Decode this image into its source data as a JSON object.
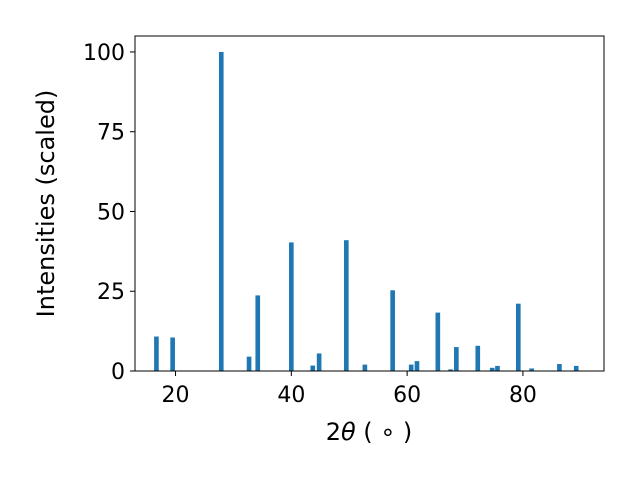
{
  "chart_data": {
    "type": "bar",
    "xlabel_main": "2",
    "xlabel_theta": "θ",
    "xlabel_unit": " ( ∘ )",
    "ylabel": "Intensities (scaled)",
    "xlim": [
      13,
      94
    ],
    "ylim": [
      0,
      105
    ],
    "xticks": [
      20,
      40,
      60,
      80
    ],
    "yticks": [
      0,
      25,
      50,
      75,
      100
    ],
    "bar_width": 0.8,
    "grid": false,
    "color": "#1f77b4",
    "series": [
      {
        "x": [
          16.7,
          19.5,
          27.9,
          32.7,
          34.2,
          40.0,
          43.7,
          44.8,
          49.5,
          52.7,
          57.5,
          60.7,
          61.7,
          65.3,
          67.5,
          68.5,
          72.2,
          74.7,
          75.6,
          79.2,
          81.5,
          86.3,
          89.2
        ],
        "values": [
          10.8,
          10.5,
          100,
          4.5,
          23.7,
          40.3,
          1.7,
          5.5,
          41.0,
          2.0,
          25.3,
          2.0,
          3.1,
          18.3,
          0.5,
          7.5,
          7.9,
          1.0,
          1.6,
          21.1,
          0.8,
          2.2,
          1.6
        ]
      }
    ]
  }
}
